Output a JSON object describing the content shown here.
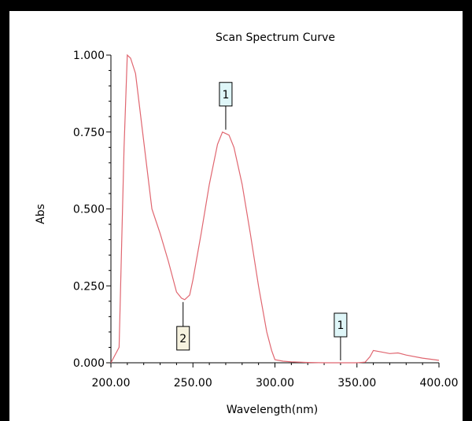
{
  "chart_data": {
    "type": "line",
    "title": "Scan Spectrum Curve",
    "xlabel": "Wavelength(nm)",
    "ylabel": "Abs",
    "xlim": [
      200,
      400
    ],
    "ylim": [
      0,
      1
    ],
    "x_ticks": [
      "200.00",
      "250.00",
      "300.00",
      "350.00",
      "400.00"
    ],
    "y_ticks": [
      "0.000",
      "0.250",
      "0.500",
      "0.750",
      "1.000"
    ],
    "colors": {
      "line": "#e06670",
      "peak_marker_fill": "#dff6f8",
      "valley_marker_fill": "#f6f2df"
    },
    "series": [
      {
        "x": [
          200,
          205,
          208,
          210,
          212,
          215,
          220,
          225,
          230,
          235,
          240,
          243,
          245,
          248,
          250,
          255,
          260,
          265,
          268,
          270,
          272,
          275,
          280,
          285,
          290,
          295,
          298,
          300,
          305,
          310,
          320,
          330,
          340,
          350,
          355,
          358,
          360,
          365,
          370,
          375,
          380,
          390,
          400
        ],
        "y": [
          0.0,
          0.05,
          0.7,
          1.0,
          0.99,
          0.94,
          0.72,
          0.5,
          0.42,
          0.33,
          0.23,
          0.21,
          0.205,
          0.22,
          0.27,
          0.42,
          0.58,
          0.71,
          0.75,
          0.745,
          0.74,
          0.7,
          0.58,
          0.42,
          0.25,
          0.1,
          0.04,
          0.01,
          0.005,
          0.003,
          0.001,
          0.0,
          0.0,
          0.0,
          0.002,
          0.02,
          0.04,
          0.035,
          0.03,
          0.032,
          0.025,
          0.015,
          0.008
        ]
      }
    ],
    "markers": [
      {
        "label": "1",
        "x": 270,
        "y": 0.75,
        "kind": "peak"
      },
      {
        "label": "2",
        "x": 244,
        "y": 0.205,
        "kind": "valley"
      },
      {
        "label": "1",
        "x": 340,
        "y": 0.0,
        "kind": "peak"
      }
    ]
  }
}
